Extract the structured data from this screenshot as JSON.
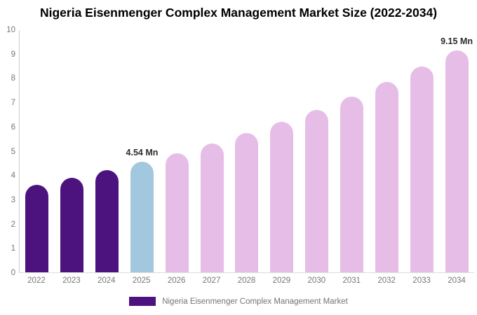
{
  "chart_data": {
    "type": "bar",
    "title": "Nigeria Eisenmenger Complex Management Market Size (2022-2034)",
    "categories": [
      "2022",
      "2023",
      "2024",
      "2025",
      "2026",
      "2027",
      "2028",
      "2029",
      "2030",
      "2031",
      "2032",
      "2033",
      "2034"
    ],
    "values": [
      3.6,
      3.89,
      4.2,
      4.54,
      4.91,
      5.3,
      5.73,
      6.2,
      6.7,
      7.24,
      7.83,
      8.46,
      9.15
    ],
    "unit": "Mn",
    "xlabel": "",
    "ylabel": "",
    "ylim": [
      0,
      10
    ],
    "ytick_step": 1,
    "grid": false,
    "legend_position": "bottom",
    "annotations": [
      {
        "index": 3,
        "text": "4.54 Mn"
      },
      {
        "index": 12,
        "text": "9.15 Mn"
      }
    ],
    "colors": {
      "historical": "#4C137E",
      "base_year": "#A2C8E0",
      "forecast": "#E6BDE7"
    },
    "bar_roles": [
      "historical",
      "historical",
      "historical",
      "base_year",
      "forecast",
      "forecast",
      "forecast",
      "forecast",
      "forecast",
      "forecast",
      "forecast",
      "forecast",
      "forecast"
    ],
    "legend": {
      "label": "Nigeria Eisenmenger Complex Management Market",
      "swatch_color": "#4C137E"
    }
  }
}
